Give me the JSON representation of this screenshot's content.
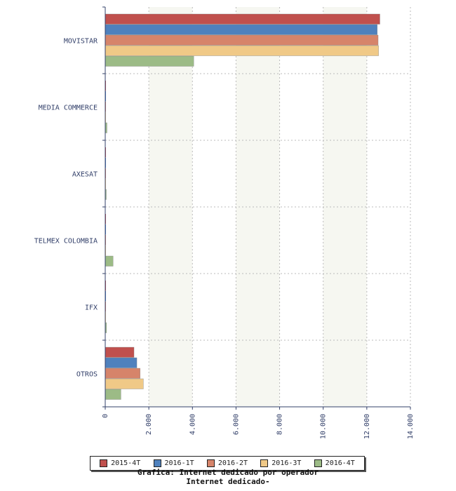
{
  "chart_data": {
    "type": "bar",
    "orientation": "horizontal",
    "categories": [
      "MOVISTAR",
      "MEDIA COMMERCE",
      "AXESAT",
      "TELMEX COLOMBIA",
      "IFX",
      "OTROS"
    ],
    "series": [
      {
        "name": "2015-4T",
        "color": "#c0504d",
        "values": [
          12600,
          0,
          0,
          0,
          0,
          1320
        ]
      },
      {
        "name": "2016-1T",
        "color": "#4f81bd",
        "values": [
          12480,
          0,
          0,
          0,
          0,
          1450
        ]
      },
      {
        "name": "2016-2T",
        "color": "#d6846a",
        "values": [
          12520,
          0,
          0,
          0,
          0,
          1600
        ]
      },
      {
        "name": "2016-3T",
        "color": "#f0c987",
        "values": [
          12540,
          0,
          0,
          0,
          0,
          1750
        ]
      },
      {
        "name": "2016-4T",
        "color": "#9cbb86",
        "values": [
          4060,
          80,
          20,
          360,
          60,
          720
        ]
      }
    ],
    "xlim": [
      0,
      14000
    ],
    "xticks": [
      0,
      2000,
      4000,
      6000,
      8000,
      10000,
      12000,
      14000
    ],
    "xtick_labels": [
      "0",
      "2.000",
      "4.000",
      "6.000",
      "8.000",
      "10.000",
      "12.000",
      "14.000"
    ],
    "grid": true,
    "legend_position": "bottom"
  },
  "caption": {
    "line1": "Grafica: Internet dedicado por operador",
    "line2": "Internet dedicado-"
  }
}
